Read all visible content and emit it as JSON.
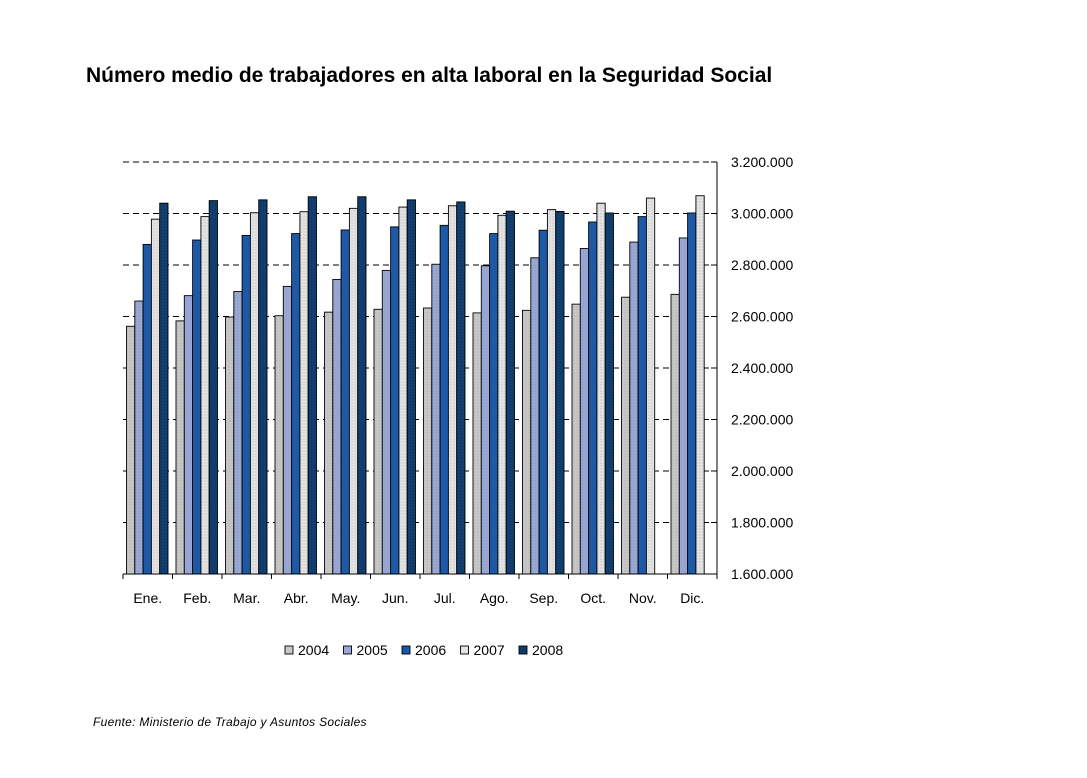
{
  "title": "Número medio de trabajadores en alta laboral en la Seguridad Social",
  "source": "Fuente: Ministerio de Trabajo y Asuntos Sociales",
  "chart_data": {
    "type": "bar",
    "categories": [
      "Ene.",
      "Feb.",
      "Mar.",
      "Abr.",
      "May.",
      "Jun.",
      "Jul.",
      "Ago.",
      "Sep.",
      "Oct.",
      "Nov.",
      "Dic."
    ],
    "ylim": [
      1600000,
      3200000
    ],
    "ytick_values": [
      1600000,
      1800000,
      2000000,
      2200000,
      2400000,
      2600000,
      2800000,
      3000000,
      3200000
    ],
    "ytick_labels": [
      "1.600.000",
      "1.800.000",
      "2.000.000",
      "2.200.000",
      "2.400.000",
      "2.600.000",
      "2.800.000",
      "3.000.000",
      "3.200.000"
    ],
    "y_axis_side": "right",
    "grid": "dashed horizontal",
    "legend_position": "bottom",
    "series": [
      {
        "name": "2004",
        "color": "#c8c8c8",
        "values": [
          2562000,
          2583000,
          2598000,
          2603000,
          2617000,
          2628000,
          2633000,
          2614000,
          2624000,
          2648000,
          2675000,
          2686000
        ]
      },
      {
        "name": "2005",
        "color": "#99a8d6",
        "values": [
          2660000,
          2681000,
          2697000,
          2717000,
          2744000,
          2779000,
          2803000,
          2797000,
          2828000,
          2864000,
          2889000,
          2905000
        ]
      },
      {
        "name": "2006",
        "color": "#1a58a8",
        "values": [
          2880000,
          2897000,
          2915000,
          2922000,
          2936000,
          2948000,
          2954000,
          2922000,
          2935000,
          2967000,
          2988000,
          3002000
        ]
      },
      {
        "name": "2007",
        "color": "#e4e4e4",
        "values": [
          2978000,
          2988000,
          3003000,
          3007000,
          3020000,
          3025000,
          3030000,
          2993000,
          3015000,
          3040000,
          3060000,
          3069000
        ]
      },
      {
        "name": "2008",
        "color": "#0d3b6e",
        "values": [
          3040000,
          3050000,
          3053000,
          3065000,
          3065000,
          3053000,
          3045000,
          3009000,
          3008000,
          3002000,
          null,
          null
        ]
      }
    ]
  }
}
